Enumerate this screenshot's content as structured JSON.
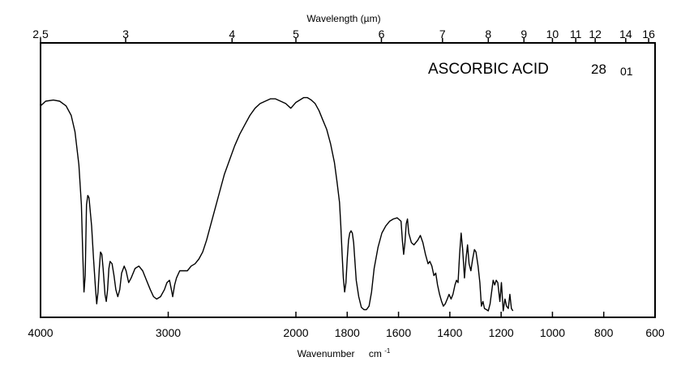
{
  "chart_data": {
    "type": "line",
    "title": "ASCORBIC ACID",
    "code_main": "28",
    "code_sub": "01",
    "xlabel": "Wavenumber",
    "xlabel_unit": "cm",
    "xlabel_unit_exp": "-1",
    "x2label": "Wavelength (µm)",
    "xlim": [
      4000,
      600
    ],
    "x_breakpoint": 2000,
    "ylim": [
      0,
      100
    ],
    "grid": false,
    "bottom_ticks": [
      {
        "value": 4000,
        "label": "4000"
      },
      {
        "value": 3000,
        "label": "3000"
      },
      {
        "value": 2000,
        "label": "2000"
      },
      {
        "value": 1800,
        "label": "1800"
      },
      {
        "value": 1600,
        "label": "1600"
      },
      {
        "value": 1400,
        "label": "1400"
      },
      {
        "value": 1200,
        "label": "1200"
      },
      {
        "value": 1000,
        "label": "1000"
      },
      {
        "value": 800,
        "label": "800"
      },
      {
        "value": 600,
        "label": "600"
      }
    ],
    "top_ticks": [
      {
        "um": 2.5,
        "label": "2.5"
      },
      {
        "um": 3,
        "label": "3"
      },
      {
        "um": 4,
        "label": "4"
      },
      {
        "um": 5,
        "label": "5"
      },
      {
        "um": 6,
        "label": "6"
      },
      {
        "um": 7,
        "label": "7"
      },
      {
        "um": 8,
        "label": "8"
      },
      {
        "um": 9,
        "label": "9"
      },
      {
        "um": 10,
        "label": "10"
      },
      {
        "um": 11,
        "label": "11"
      },
      {
        "um": 12,
        "label": "12"
      },
      {
        "um": 14,
        "label": "14"
      },
      {
        "um": 16,
        "label": "16"
      }
    ],
    "series": [
      {
        "points": [
          [
            4000,
            87
          ],
          [
            3960,
            89
          ],
          [
            3900,
            89.5
          ],
          [
            3850,
            89
          ],
          [
            3800,
            87
          ],
          [
            3760,
            83
          ],
          [
            3730,
            76
          ],
          [
            3700,
            62
          ],
          [
            3680,
            45
          ],
          [
            3670,
            25
          ],
          [
            3660,
            8
          ],
          [
            3650,
            15
          ],
          [
            3640,
            45
          ],
          [
            3630,
            49
          ],
          [
            3620,
            48
          ],
          [
            3600,
            36
          ],
          [
            3585,
            22
          ],
          [
            3570,
            10
          ],
          [
            3560,
            3
          ],
          [
            3550,
            8
          ],
          [
            3540,
            18
          ],
          [
            3530,
            25
          ],
          [
            3520,
            24
          ],
          [
            3510,
            18
          ],
          [
            3495,
            7
          ],
          [
            3485,
            4
          ],
          [
            3475,
            9
          ],
          [
            3465,
            18
          ],
          [
            3455,
            21
          ],
          [
            3440,
            20
          ],
          [
            3425,
            15
          ],
          [
            3410,
            9
          ],
          [
            3395,
            6
          ],
          [
            3380,
            9
          ],
          [
            3365,
            16
          ],
          [
            3345,
            19
          ],
          [
            3330,
            17
          ],
          [
            3310,
            12
          ],
          [
            3290,
            14
          ],
          [
            3260,
            18
          ],
          [
            3230,
            19
          ],
          [
            3200,
            17
          ],
          [
            3170,
            13
          ],
          [
            3140,
            9
          ],
          [
            3115,
            6
          ],
          [
            3090,
            5
          ],
          [
            3060,
            6
          ],
          [
            3030,
            9
          ],
          [
            3010,
            12
          ],
          [
            2990,
            13
          ],
          [
            2975,
            9
          ],
          [
            2965,
            6
          ],
          [
            2950,
            11
          ],
          [
            2935,
            14
          ],
          [
            2910,
            17
          ],
          [
            2880,
            17
          ],
          [
            2850,
            17
          ],
          [
            2820,
            19
          ],
          [
            2790,
            20
          ],
          [
            2760,
            22
          ],
          [
            2730,
            25
          ],
          [
            2700,
            30
          ],
          [
            2670,
            36
          ],
          [
            2640,
            42
          ],
          [
            2600,
            50
          ],
          [
            2560,
            58
          ],
          [
            2520,
            64
          ],
          [
            2480,
            70
          ],
          [
            2440,
            75
          ],
          [
            2400,
            79
          ],
          [
            2360,
            83
          ],
          [
            2320,
            86
          ],
          [
            2280,
            88
          ],
          [
            2240,
            89
          ],
          [
            2200,
            90
          ],
          [
            2160,
            90
          ],
          [
            2120,
            89
          ],
          [
            2080,
            88
          ],
          [
            2040,
            86
          ],
          [
            2000,
            88.5
          ],
          [
            1985,
            89.5
          ],
          [
            1970,
            90.5
          ],
          [
            1955,
            90.5
          ],
          [
            1940,
            89.5
          ],
          [
            1925,
            88
          ],
          [
            1910,
            85
          ],
          [
            1895,
            81
          ],
          [
            1880,
            77
          ],
          [
            1865,
            71
          ],
          [
            1850,
            63
          ],
          [
            1840,
            55
          ],
          [
            1830,
            46
          ],
          [
            1825,
            36
          ],
          [
            1820,
            24
          ],
          [
            1815,
            14
          ],
          [
            1810,
            8
          ],
          [
            1805,
            12
          ],
          [
            1800,
            22
          ],
          [
            1795,
            30
          ],
          [
            1790,
            33
          ],
          [
            1785,
            34
          ],
          [
            1780,
            33
          ],
          [
            1775,
            29
          ],
          [
            1770,
            21
          ],
          [
            1765,
            13
          ],
          [
            1755,
            6
          ],
          [
            1745,
            1.5
          ],
          [
            1735,
            0.5
          ],
          [
            1725,
            0.5
          ],
          [
            1715,
            2
          ],
          [
            1705,
            8
          ],
          [
            1695,
            18
          ],
          [
            1680,
            27
          ],
          [
            1665,
            33
          ],
          [
            1650,
            36
          ],
          [
            1635,
            38
          ],
          [
            1620,
            39
          ],
          [
            1605,
            39.5
          ],
          [
            1590,
            38
          ],
          [
            1585,
            30
          ],
          [
            1580,
            24
          ],
          [
            1575,
            29
          ],
          [
            1570,
            37
          ],
          [
            1565,
            39
          ],
          [
            1560,
            33
          ],
          [
            1550,
            29
          ],
          [
            1540,
            28
          ],
          [
            1525,
            30
          ],
          [
            1515,
            32
          ],
          [
            1505,
            29
          ],
          [
            1495,
            24
          ],
          [
            1485,
            20
          ],
          [
            1478,
            21
          ],
          [
            1470,
            19
          ],
          [
            1462,
            15
          ],
          [
            1455,
            16
          ],
          [
            1448,
            11
          ],
          [
            1440,
            7
          ],
          [
            1432,
            4
          ],
          [
            1425,
            2
          ],
          [
            1418,
            3
          ],
          [
            1410,
            5
          ],
          [
            1403,
            7
          ],
          [
            1395,
            5
          ],
          [
            1388,
            7
          ],
          [
            1380,
            11
          ],
          [
            1374,
            13
          ],
          [
            1368,
            12
          ],
          [
            1362,
            24
          ],
          [
            1356,
            33
          ],
          [
            1350,
            26
          ],
          [
            1343,
            14
          ],
          [
            1337,
            22
          ],
          [
            1331,
            28
          ],
          [
            1325,
            20
          ],
          [
            1318,
            17
          ],
          [
            1311,
            22
          ],
          [
            1304,
            26
          ],
          [
            1298,
            25
          ],
          [
            1290,
            19
          ],
          [
            1283,
            12
          ],
          [
            1277,
            2
          ],
          [
            1271,
            4
          ],
          [
            1265,
            1
          ],
          [
            1257,
            0.5
          ],
          [
            1250,
            0
          ],
          [
            1243,
            3
          ],
          [
            1237,
            8
          ],
          [
            1231,
            13
          ],
          [
            1225,
            11
          ],
          [
            1219,
            13
          ],
          [
            1213,
            12
          ],
          [
            1205,
            4
          ],
          [
            1199,
            12
          ],
          [
            1192,
            0
          ],
          [
            1185,
            5
          ],
          [
            1179,
            2
          ],
          [
            1172,
            1
          ],
          [
            1166,
            7
          ],
          [
            1160,
            1
          ],
          [
            1154,
            0
          ]
        ]
      }
    ]
  }
}
